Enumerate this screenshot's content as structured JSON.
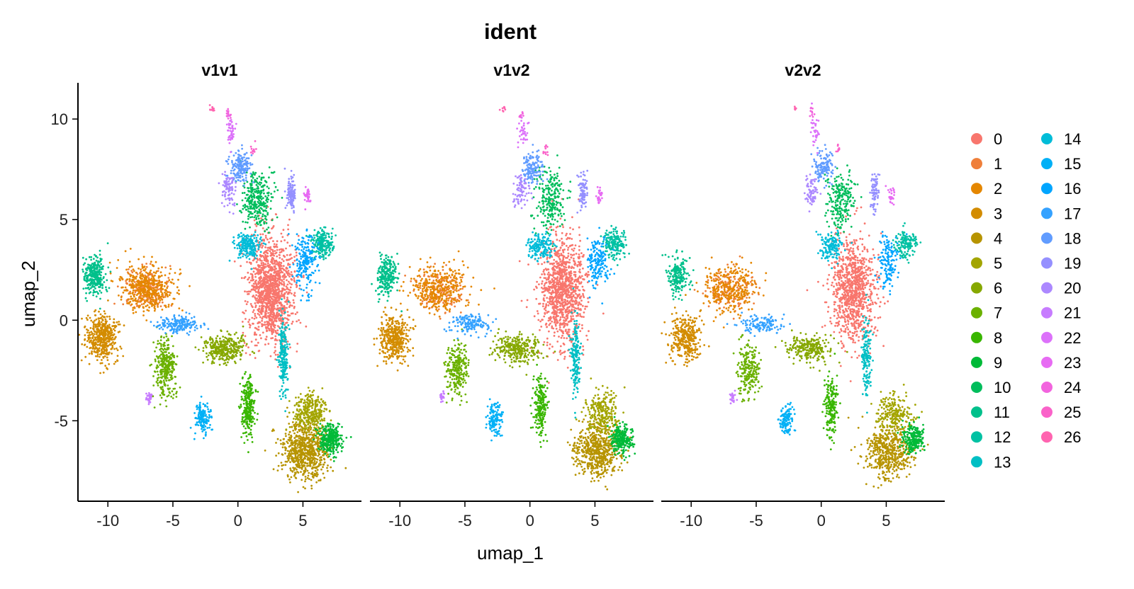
{
  "chart_data": {
    "type": "scatter",
    "title": "ident",
    "xlabel": "umap_1",
    "ylabel": "umap_2",
    "xlim": [
      -12.3,
      9.5
    ],
    "ylim": [
      -9.0,
      11.8
    ],
    "x_ticks": [
      -10,
      -5,
      0,
      5
    ],
    "x_tick_labels": [
      "-10",
      "-5",
      "0",
      "5"
    ],
    "y_ticks": [
      -5,
      0,
      5,
      10
    ],
    "y_tick_labels": [
      "-5",
      "0",
      "5",
      "10"
    ],
    "grid": false,
    "legend_position": "right",
    "panels": [
      {
        "label": "v1v1",
        "density": 1.0
      },
      {
        "label": "v1v2",
        "density": 0.82
      },
      {
        "label": "v2v2",
        "density": 0.72
      }
    ],
    "clusters": [
      {
        "label": "0",
        "color": "#F8766D",
        "centroid": [
          2.5,
          1.5
        ],
        "spread": [
          1.25,
          1.9
        ],
        "cells": 1300
      },
      {
        "label": "1",
        "color": "#EF7F3A",
        "centroid": [
          -7.0,
          1.5
        ],
        "spread": [
          1.3,
          0.75
        ],
        "cells": 220
      },
      {
        "label": "2",
        "color": "#E58700",
        "centroid": [
          -7.0,
          1.6
        ],
        "spread": [
          1.5,
          0.8
        ],
        "cells": 420
      },
      {
        "label": "3",
        "color": "#D38C00",
        "centroid": [
          -10.4,
          -0.9
        ],
        "spread": [
          0.85,
          0.8
        ],
        "cells": 480
      },
      {
        "label": "4",
        "color": "#B79400",
        "centroid": [
          5.2,
          -6.5
        ],
        "spread": [
          1.3,
          0.95
        ],
        "cells": 700
      },
      {
        "label": "5",
        "color": "#A3A500",
        "centroid": [
          5.6,
          -4.6
        ],
        "spread": [
          0.9,
          0.7
        ],
        "cells": 300
      },
      {
        "label": "6",
        "color": "#86A800",
        "centroid": [
          -1.0,
          -1.4
        ],
        "spread": [
          1.2,
          0.5
        ],
        "cells": 340
      },
      {
        "label": "7",
        "color": "#6BB100",
        "centroid": [
          -5.6,
          -2.4
        ],
        "spread": [
          0.6,
          1.0
        ],
        "cells": 300
      },
      {
        "label": "8",
        "color": "#39B600",
        "centroid": [
          0.8,
          -4.3
        ],
        "spread": [
          0.35,
          1.1
        ],
        "cells": 260
      },
      {
        "label": "9",
        "color": "#00BA38",
        "centroid": [
          7.1,
          -5.9
        ],
        "spread": [
          0.6,
          0.5
        ],
        "cells": 300
      },
      {
        "label": "10",
        "color": "#00BD5C",
        "centroid": [
          1.5,
          6.0
        ],
        "spread": [
          0.8,
          1.0
        ],
        "cells": 300
      },
      {
        "label": "11",
        "color": "#00C08B",
        "centroid": [
          -11.0,
          2.2
        ],
        "spread": [
          0.55,
          0.7
        ],
        "cells": 280
      },
      {
        "label": "12",
        "color": "#00C1A3",
        "centroid": [
          6.5,
          3.8
        ],
        "spread": [
          0.6,
          0.5
        ],
        "cells": 200
      },
      {
        "label": "13",
        "color": "#00BFC4",
        "centroid": [
          3.5,
          -1.8
        ],
        "spread": [
          0.25,
          1.4
        ],
        "cells": 220
      },
      {
        "label": "14",
        "color": "#00BCD8",
        "centroid": [
          0.8,
          3.7
        ],
        "spread": [
          0.7,
          0.45
        ],
        "cells": 200
      },
      {
        "label": "15",
        "color": "#00B0F6",
        "centroid": [
          -2.7,
          -4.9
        ],
        "spread": [
          0.4,
          0.55
        ],
        "cells": 160
      },
      {
        "label": "16",
        "color": "#00A5FF",
        "centroid": [
          5.2,
          3.0
        ],
        "spread": [
          0.6,
          1.0
        ],
        "cells": 200
      },
      {
        "label": "17",
        "color": "#35A2FF",
        "centroid": [
          -4.6,
          -0.2
        ],
        "spread": [
          1.1,
          0.35
        ],
        "cells": 180
      },
      {
        "label": "18",
        "color": "#619CFF",
        "centroid": [
          0.2,
          7.6
        ],
        "spread": [
          0.55,
          0.55
        ],
        "cells": 170
      },
      {
        "label": "19",
        "color": "#9590FF",
        "centroid": [
          4.1,
          6.3
        ],
        "spread": [
          0.25,
          0.65
        ],
        "cells": 110
      },
      {
        "label": "20",
        "color": "#AC88FF",
        "centroid": [
          -0.7,
          6.5
        ],
        "spread": [
          0.4,
          0.6
        ],
        "cells": 90
      },
      {
        "label": "21",
        "color": "#C77CFF",
        "centroid": [
          -6.8,
          -3.8
        ],
        "spread": [
          0.15,
          0.2
        ],
        "cells": 30
      },
      {
        "label": "22",
        "color": "#DC71FA",
        "centroid": [
          -0.5,
          9.4
        ],
        "spread": [
          0.25,
          0.5
        ],
        "cells": 45
      },
      {
        "label": "23",
        "color": "#E76BF3",
        "centroid": [
          5.4,
          6.2
        ],
        "spread": [
          0.2,
          0.3
        ],
        "cells": 35
      },
      {
        "label": "24",
        "color": "#F264DE",
        "centroid": [
          -0.7,
          10.3
        ],
        "spread": [
          0.15,
          0.2
        ],
        "cells": 14
      },
      {
        "label": "25",
        "color": "#FA62C9",
        "centroid": [
          1.2,
          8.5
        ],
        "spread": [
          0.2,
          0.2
        ],
        "cells": 12
      },
      {
        "label": "26",
        "color": "#FF64B0",
        "centroid": [
          -2.0,
          10.5
        ],
        "spread": [
          0.15,
          0.1
        ],
        "cells": 10
      }
    ]
  }
}
